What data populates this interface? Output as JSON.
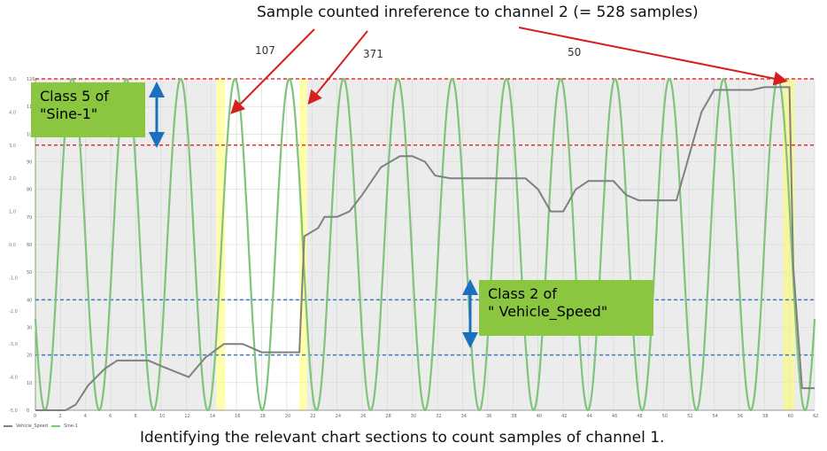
{
  "top_caption": "Sample counted inreference to channel 2   (= 528 samples)",
  "bottom_caption": "Identifying the relevant chart sections to count samples of channel 1.",
  "counts": [
    "107",
    "371",
    "50"
  ],
  "callouts": {
    "class5": {
      "line1": "Class 5 of",
      "line2": "\"Sine-1\""
    },
    "class2": {
      "line1": "Class 2 of",
      "line2": "\" Vehicle_Speed\""
    }
  },
  "colors": {
    "sine": "#7fc47a",
    "speed": "#808080",
    "threshold_red": "#e53030",
    "threshold_blue": "#3a78c8",
    "highlight": "#ffff66",
    "arrow_blue": "#1a6fc0",
    "arrow_red": "#d62020",
    "callout_bg": "#8ac640",
    "plot_bg": "#ececec"
  },
  "chart_data": {
    "type": "line",
    "x": [
      0,
      2,
      4,
      6,
      8,
      10,
      12,
      14,
      16,
      18,
      20,
      22,
      24,
      26,
      28,
      30,
      32,
      34,
      36,
      38,
      40,
      42,
      44,
      46,
      48,
      50,
      52,
      54,
      56,
      58,
      60,
      62
    ],
    "xlim": [
      0,
      62
    ],
    "series": [
      {
        "name": "Vehicle_Speed",
        "axis": "right",
        "points": [
          [
            0,
            0
          ],
          [
            2.4,
            0
          ],
          [
            3.2,
            2
          ],
          [
            4.2,
            9
          ],
          [
            5.5,
            15
          ],
          [
            6.5,
            18
          ],
          [
            7,
            18
          ],
          [
            9,
            18
          ],
          [
            10,
            16
          ],
          [
            12.2,
            12
          ],
          [
            13.5,
            19
          ],
          [
            15,
            24
          ],
          [
            16.5,
            24
          ],
          [
            18,
            21
          ],
          [
            21,
            21
          ],
          [
            21.4,
            63
          ],
          [
            22.5,
            66
          ],
          [
            23,
            70
          ],
          [
            24,
            70
          ],
          [
            25,
            72
          ],
          [
            26,
            78
          ],
          [
            27.5,
            88
          ],
          [
            29,
            92
          ],
          [
            30,
            92
          ],
          [
            31,
            90
          ],
          [
            31.8,
            85
          ],
          [
            33,
            84
          ],
          [
            39,
            84
          ],
          [
            40,
            80
          ],
          [
            41,
            72
          ],
          [
            42,
            72
          ],
          [
            43,
            80
          ],
          [
            44,
            83
          ],
          [
            46,
            83
          ],
          [
            47,
            78
          ],
          [
            48,
            76
          ],
          [
            51,
            76
          ],
          [
            52,
            92
          ],
          [
            53,
            108
          ],
          [
            54,
            116
          ],
          [
            55,
            116
          ],
          [
            57,
            116
          ],
          [
            58,
            117
          ],
          [
            60,
            117
          ],
          [
            60.3,
            52
          ],
          [
            61,
            8
          ],
          [
            62,
            8
          ]
        ]
      }
    ],
    "right_axis": {
      "ylim": [
        0,
        120
      ],
      "ticks": [
        0,
        10,
        20,
        30,
        40,
        50,
        60,
        70,
        80,
        90,
        100,
        110,
        120
      ]
    },
    "left_axis": {
      "ylim": [
        -5,
        5
      ],
      "ticks": [
        -5,
        -4,
        -3,
        -2,
        -1,
        0,
        1,
        2,
        3,
        4,
        5
      ]
    },
    "sine": {
      "name": "Sine-1",
      "amplitude": 5,
      "period": 4.32,
      "peak_at": 2.92
    },
    "thresholds": [
      {
        "axis": "left",
        "value": 5,
        "color": "red"
      },
      {
        "axis": "left",
        "value": 3,
        "color": "red"
      },
      {
        "axis": "right",
        "value": 40,
        "color": "blue"
      },
      {
        "axis": "right",
        "value": 20,
        "color": "blue"
      }
    ],
    "highlight_ranges": [
      [
        14.4,
        15.1
      ],
      [
        21.0,
        21.6
      ],
      [
        59.5,
        60.4
      ]
    ],
    "grid": true,
    "legend": "bottom-left",
    "legend_entries": [
      "Vehicle_Speed",
      "Sine-1"
    ]
  }
}
